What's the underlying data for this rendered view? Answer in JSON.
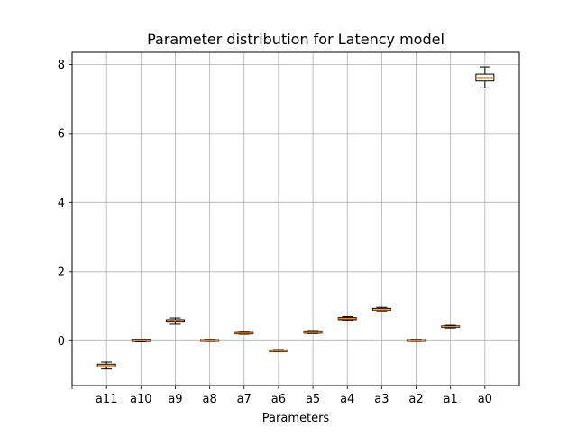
{
  "chart_data": {
    "type": "box",
    "title": "Parameter distribution for Latency model",
    "xlabel": "Parameters",
    "ylabel": "",
    "categories": [
      "a11",
      "a10",
      "a9",
      "a8",
      "a7",
      "a6",
      "a5",
      "a4",
      "a3",
      "a2",
      "a1",
      "a0"
    ],
    "ylim": [
      -1.3,
      8.35
    ],
    "yticks": [
      0,
      2,
      4,
      6,
      8
    ],
    "grid": true,
    "boxes": [
      {
        "label": "a11",
        "whisker_low": -0.82,
        "q1": -0.76,
        "median": -0.72,
        "q3": -0.68,
        "whisker_high": -0.62
      },
      {
        "label": "a10",
        "whisker_low": -0.03,
        "q1": -0.02,
        "median": 0.0,
        "q3": 0.02,
        "whisker_high": 0.03
      },
      {
        "label": "a9",
        "whisker_low": 0.48,
        "q1": 0.54,
        "median": 0.57,
        "q3": 0.61,
        "whisker_high": 0.66
      },
      {
        "label": "a8",
        "whisker_low": -0.02,
        "q1": -0.01,
        "median": 0.0,
        "q3": 0.01,
        "whisker_high": 0.02
      },
      {
        "label": "a7",
        "whisker_low": 0.19,
        "q1": 0.2,
        "median": 0.22,
        "q3": 0.24,
        "whisker_high": 0.25
      },
      {
        "label": "a6",
        "whisker_low": -0.32,
        "q1": -0.31,
        "median": -0.3,
        "q3": -0.29,
        "whisker_high": -0.28
      },
      {
        "label": "a5",
        "whisker_low": 0.21,
        "q1": 0.22,
        "median": 0.24,
        "q3": 0.26,
        "whisker_high": 0.27
      },
      {
        "label": "a4",
        "whisker_low": 0.58,
        "q1": 0.61,
        "median": 0.64,
        "q3": 0.67,
        "whisker_high": 0.7
      },
      {
        "label": "a3",
        "whisker_low": 0.84,
        "q1": 0.87,
        "median": 0.9,
        "q3": 0.94,
        "whisker_high": 0.97
      },
      {
        "label": "a2",
        "whisker_low": -0.02,
        "q1": -0.01,
        "median": 0.0,
        "q3": 0.01,
        "whisker_high": 0.02
      },
      {
        "label": "a1",
        "whisker_low": 0.37,
        "q1": 0.39,
        "median": 0.41,
        "q3": 0.43,
        "whisker_high": 0.45
      },
      {
        "label": "a0",
        "whisker_low": 7.32,
        "q1": 7.52,
        "median": 7.62,
        "q3": 7.72,
        "whisker_high": 7.93
      }
    ],
    "colors": {
      "box_edge": "#000000",
      "median": "#ff7f0e",
      "grid": "#b0b0b0",
      "axes": "#000000",
      "background": "#ffffff"
    }
  }
}
